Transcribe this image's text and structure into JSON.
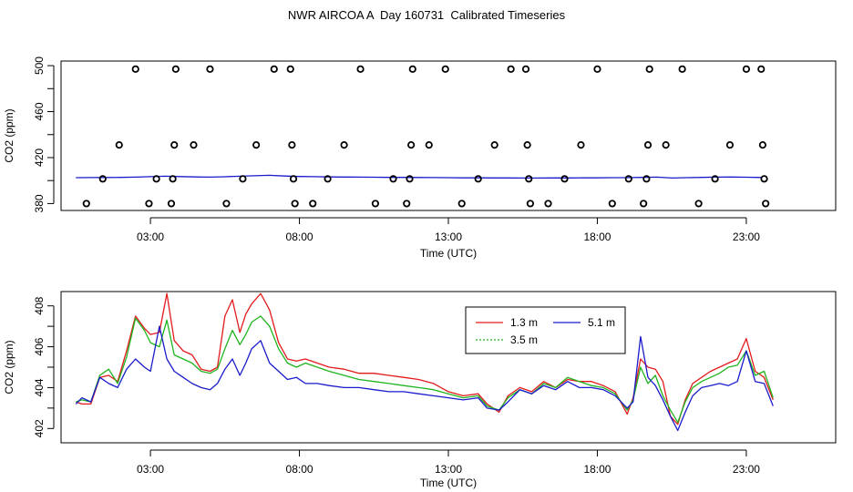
{
  "title": "NWR AIRCOA A  Day 160731  Calibrated Timeseries",
  "colors": {
    "1.3 m": "#e31a1c",
    "3.5 m": "#1fb41f",
    "5.1 m": "#1a1acc",
    "markers": "#000000"
  },
  "chart_data": [
    {
      "type": "scatter",
      "xlabel": "Time (UTC)",
      "ylabel": "CO2 (ppm)",
      "x_ticks": [
        "03:00",
        "08:00",
        "13:00",
        "18:00",
        "23:00"
      ],
      "y_ticks": [
        "380",
        "420",
        "460",
        "500"
      ],
      "xlim": [
        0.0,
        26.0
      ],
      "ylim": [
        374,
        504
      ],
      "grid": false,
      "points": [
        {
          "x": 0.85,
          "y": 380
        },
        {
          "x": 1.4,
          "y": 401.5
        },
        {
          "x": 1.95,
          "y": 431
        },
        {
          "x": 2.5,
          "y": 497
        },
        {
          "x": 2.95,
          "y": 380
        },
        {
          "x": 3.2,
          "y": 401.5
        },
        {
          "x": 3.7,
          "y": 380
        },
        {
          "x": 3.75,
          "y": 401.5
        },
        {
          "x": 3.8,
          "y": 431
        },
        {
          "x": 3.85,
          "y": 497
        },
        {
          "x": 4.45,
          "y": 431
        },
        {
          "x": 5.0,
          "y": 497
        },
        {
          "x": 5.55,
          "y": 380
        },
        {
          "x": 6.1,
          "y": 401.5
        },
        {
          "x": 6.55,
          "y": 431
        },
        {
          "x": 7.15,
          "y": 497
        },
        {
          "x": 7.7,
          "y": 497
        },
        {
          "x": 7.75,
          "y": 431
        },
        {
          "x": 7.8,
          "y": 401.5
        },
        {
          "x": 7.85,
          "y": 380
        },
        {
          "x": 8.45,
          "y": 380
        },
        {
          "x": 8.95,
          "y": 401.5
        },
        {
          "x": 9.5,
          "y": 431
        },
        {
          "x": 10.05,
          "y": 497
        },
        {
          "x": 10.55,
          "y": 380
        },
        {
          "x": 11.15,
          "y": 401.5
        },
        {
          "x": 11.6,
          "y": 380
        },
        {
          "x": 11.7,
          "y": 401.5
        },
        {
          "x": 11.75,
          "y": 431
        },
        {
          "x": 11.8,
          "y": 497
        },
        {
          "x": 12.35,
          "y": 431
        },
        {
          "x": 12.9,
          "y": 497
        },
        {
          "x": 13.45,
          "y": 380
        },
        {
          "x": 14.0,
          "y": 401.5
        },
        {
          "x": 14.55,
          "y": 431
        },
        {
          "x": 15.1,
          "y": 497
        },
        {
          "x": 15.6,
          "y": 497
        },
        {
          "x": 15.65,
          "y": 431
        },
        {
          "x": 15.7,
          "y": 401.5
        },
        {
          "x": 15.75,
          "y": 380
        },
        {
          "x": 16.35,
          "y": 380
        },
        {
          "x": 16.9,
          "y": 401.5
        },
        {
          "x": 17.45,
          "y": 431
        },
        {
          "x": 18.0,
          "y": 497
        },
        {
          "x": 18.5,
          "y": 380
        },
        {
          "x": 19.05,
          "y": 401.5
        },
        {
          "x": 19.55,
          "y": 380
        },
        {
          "x": 19.65,
          "y": 401.5
        },
        {
          "x": 19.7,
          "y": 431
        },
        {
          "x": 19.75,
          "y": 497
        },
        {
          "x": 20.3,
          "y": 431
        },
        {
          "x": 20.85,
          "y": 497
        },
        {
          "x": 21.4,
          "y": 380
        },
        {
          "x": 21.95,
          "y": 401.5
        },
        {
          "x": 22.45,
          "y": 431
        },
        {
          "x": 23.0,
          "y": 497
        },
        {
          "x": 23.5,
          "y": 497
        },
        {
          "x": 23.55,
          "y": 431
        },
        {
          "x": 23.6,
          "y": 401.5
        },
        {
          "x": 23.65,
          "y": 380
        }
      ],
      "series": [
        {
          "x": [
            0.5,
            1.0,
            1.5,
            2.0,
            2.5,
            3.0,
            3.5,
            4.0,
            4.5,
            5.0,
            5.5,
            6.0,
            6.5,
            7.0,
            7.5,
            8.0,
            8.5,
            9.0,
            9.5,
            10.0,
            10.5,
            11.0,
            11.5,
            12.0,
            12.5,
            13.0,
            13.5,
            14.0,
            14.5,
            15.0,
            15.5,
            16.0,
            16.5,
            17.0,
            17.5,
            18.0,
            18.5,
            19.0,
            19.5,
            20.0,
            20.5,
            21.0,
            21.5,
            22.0,
            22.5,
            23.0,
            23.5
          ],
          "y": [
            402.5,
            402.6,
            402.7,
            402.8,
            403.0,
            403.4,
            403.8,
            403.5,
            403.2,
            403.0,
            403.3,
            403.8,
            404.2,
            404.6,
            404.0,
            403.6,
            403.4,
            403.2,
            403.1,
            403.0,
            402.9,
            402.8,
            402.8,
            402.7,
            402.6,
            402.5,
            402.4,
            402.4,
            402.3,
            402.3,
            402.2,
            402.2,
            402.3,
            402.3,
            402.4,
            402.4,
            402.5,
            402.5,
            402.8,
            403.0,
            402.2,
            402.5,
            402.8,
            403.0,
            403.1,
            402.9,
            402.7
          ]
        }
      ]
    },
    {
      "type": "line",
      "xlabel": "Time (UTC)",
      "ylabel": "CO2 (ppm)",
      "x_ticks": [
        "03:00",
        "08:00",
        "13:00",
        "18:00",
        "23:00"
      ],
      "y_ticks": [
        "402",
        "404",
        "406",
        "408"
      ],
      "xlim": [
        0.0,
        26.0
      ],
      "ylim": [
        401.3,
        408.7
      ],
      "grid": false,
      "legend_position": "top-center",
      "series": [
        {
          "name": "1.3 m",
          "x": [
            0.5,
            0.7,
            1.0,
            1.3,
            1.6,
            1.9,
            2.2,
            2.5,
            2.8,
            3.0,
            3.3,
            3.55,
            3.8,
            4.1,
            4.4,
            4.7,
            5.0,
            5.25,
            5.5,
            5.75,
            6.0,
            6.2,
            6.4,
            6.7,
            7.0,
            7.3,
            7.6,
            7.9,
            8.2,
            8.6,
            9.0,
            9.5,
            10.0,
            10.5,
            11.0,
            11.5,
            12.0,
            12.5,
            13.0,
            13.5,
            14.0,
            14.3,
            14.7,
            15.0,
            15.4,
            15.8,
            16.2,
            16.6,
            17.0,
            17.4,
            17.8,
            18.2,
            18.6,
            19.0,
            19.2,
            19.45,
            19.7,
            19.95,
            20.2,
            20.45,
            20.7,
            20.95,
            21.2,
            21.5,
            21.8,
            22.1,
            22.4,
            22.7,
            23.0,
            23.3,
            23.6,
            23.9
          ],
          "y": [
            403.3,
            403.2,
            403.2,
            404.5,
            404.6,
            404.3,
            405.8,
            407.5,
            406.9,
            406.6,
            406.7,
            408.6,
            406.3,
            405.8,
            405.6,
            404.9,
            404.8,
            405.0,
            407.5,
            408.3,
            406.7,
            407.6,
            408.1,
            408.6,
            407.8,
            406.2,
            405.4,
            405.3,
            405.4,
            405.2,
            405.0,
            404.9,
            404.7,
            404.7,
            404.6,
            404.5,
            404.4,
            404.2,
            403.8,
            403.6,
            403.7,
            403.2,
            402.8,
            403.6,
            404.0,
            403.8,
            404.3,
            404.0,
            404.4,
            404.3,
            404.3,
            404.1,
            403.8,
            402.7,
            403.5,
            405.4,
            405.0,
            404.9,
            404.3,
            402.6,
            402.2,
            403.4,
            404.2,
            404.5,
            404.8,
            405.0,
            405.2,
            405.4,
            406.4,
            404.8,
            404.5,
            403.4
          ]
        },
        {
          "name": "3.5 m",
          "x": [
            0.5,
            0.7,
            1.0,
            1.3,
            1.6,
            1.9,
            2.2,
            2.5,
            2.8,
            3.0,
            3.3,
            3.55,
            3.8,
            4.1,
            4.4,
            4.7,
            5.0,
            5.25,
            5.5,
            5.75,
            6.0,
            6.2,
            6.4,
            6.7,
            7.0,
            7.3,
            7.6,
            7.9,
            8.2,
            8.6,
            9.0,
            9.5,
            10.0,
            10.5,
            11.0,
            11.5,
            12.0,
            12.5,
            13.0,
            13.5,
            14.0,
            14.3,
            14.7,
            15.0,
            15.4,
            15.8,
            16.2,
            16.6,
            17.0,
            17.4,
            17.8,
            18.2,
            18.6,
            19.0,
            19.2,
            19.45,
            19.7,
            19.95,
            20.2,
            20.45,
            20.7,
            20.95,
            21.2,
            21.5,
            21.8,
            22.1,
            22.4,
            22.7,
            23.0,
            23.3,
            23.6,
            23.9
          ],
          "y": [
            403.3,
            403.4,
            403.3,
            404.6,
            404.9,
            404.2,
            405.5,
            407.4,
            406.8,
            406.2,
            406.0,
            407.3,
            405.6,
            405.4,
            405.2,
            404.8,
            404.7,
            404.9,
            405.9,
            406.8,
            406.1,
            406.6,
            407.2,
            407.5,
            407.0,
            405.9,
            405.2,
            405.0,
            405.2,
            405.0,
            404.8,
            404.6,
            404.4,
            404.3,
            404.2,
            404.1,
            404.0,
            403.9,
            403.7,
            403.5,
            403.6,
            403.1,
            402.9,
            403.5,
            403.9,
            403.7,
            404.2,
            404.0,
            404.5,
            404.3,
            404.1,
            404.0,
            403.7,
            402.9,
            403.4,
            405.0,
            404.2,
            404.6,
            403.6,
            402.9,
            402.3,
            403.3,
            404.0,
            404.3,
            404.5,
            404.7,
            405.0,
            405.1,
            405.8,
            404.6,
            404.8,
            403.5
          ]
        },
        {
          "name": "5.1 m",
          "x": [
            0.5,
            0.7,
            1.0,
            1.3,
            1.6,
            1.9,
            2.2,
            2.5,
            2.8,
            3.0,
            3.3,
            3.55,
            3.8,
            4.1,
            4.4,
            4.7,
            5.0,
            5.25,
            5.5,
            5.75,
            6.0,
            6.2,
            6.4,
            6.7,
            7.0,
            7.3,
            7.6,
            7.9,
            8.2,
            8.6,
            9.0,
            9.5,
            10.0,
            10.5,
            11.0,
            11.5,
            12.0,
            12.5,
            13.0,
            13.5,
            14.0,
            14.3,
            14.7,
            15.0,
            15.4,
            15.8,
            16.2,
            16.6,
            17.0,
            17.4,
            17.8,
            18.2,
            18.6,
            19.0,
            19.2,
            19.45,
            19.7,
            19.95,
            20.2,
            20.45,
            20.7,
            20.95,
            21.2,
            21.5,
            21.8,
            22.1,
            22.4,
            22.7,
            23.0,
            23.3,
            23.6,
            23.9
          ],
          "y": [
            403.2,
            403.5,
            403.3,
            404.5,
            404.2,
            404.0,
            404.9,
            405.4,
            405.0,
            404.8,
            407.0,
            405.4,
            404.8,
            404.5,
            404.2,
            404.0,
            403.9,
            404.2,
            404.9,
            405.4,
            404.6,
            405.2,
            405.9,
            406.3,
            405.2,
            404.8,
            404.4,
            404.5,
            404.2,
            404.2,
            404.1,
            404.0,
            404.0,
            403.9,
            403.8,
            403.8,
            403.7,
            403.6,
            403.5,
            403.4,
            403.5,
            403.0,
            402.9,
            403.3,
            403.9,
            403.7,
            404.1,
            403.9,
            404.3,
            404.0,
            404.0,
            403.9,
            403.6,
            403.0,
            403.3,
            406.5,
            404.5,
            404.1,
            403.4,
            402.6,
            401.9,
            402.8,
            403.6,
            404.0,
            404.1,
            404.2,
            404.1,
            404.3,
            405.8,
            404.3,
            404.2,
            403.1
          ]
        }
      ]
    }
  ]
}
